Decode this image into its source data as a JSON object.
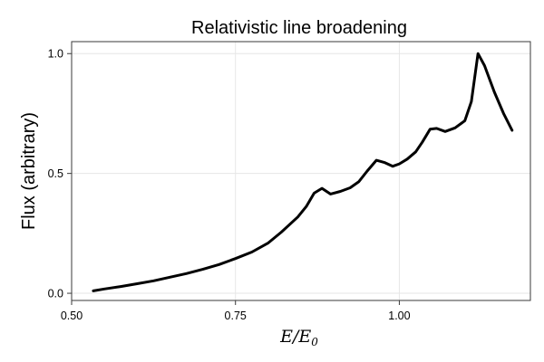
{
  "chart_data": {
    "type": "line",
    "title": "Relativistic line broadening",
    "xlabel": "E/E",
    "xlabel_sub": "0",
    "ylabel": "Flux (arbitrary)",
    "xlim": [
      0.5,
      1.2
    ],
    "ylim": [
      -0.03,
      1.05
    ],
    "xticks": [
      0.5,
      0.75,
      1.0
    ],
    "xtick_labels": [
      "0.50",
      "0.75",
      "1.00"
    ],
    "yticks": [
      0.0,
      0.5,
      1.0
    ],
    "ytick_labels": [
      "0.0",
      "0.5",
      "1.0"
    ],
    "grid": true,
    "series": [
      {
        "color": "#000000",
        "x": [
          0.533,
          0.55,
          0.575,
          0.6,
          0.625,
          0.65,
          0.675,
          0.7,
          0.725,
          0.75,
          0.775,
          0.8,
          0.82,
          0.845,
          0.858,
          0.87,
          0.882,
          0.895,
          0.91,
          0.925,
          0.938,
          0.951,
          0.965,
          0.978,
          0.99,
          1.0,
          1.012,
          1.025,
          1.035,
          1.047,
          1.057,
          1.07,
          1.085,
          1.1,
          1.11,
          1.12,
          1.13,
          1.145,
          1.159,
          1.172
        ],
        "y": [
          0.01,
          0.018,
          0.028,
          0.04,
          0.052,
          0.067,
          0.082,
          0.1,
          0.12,
          0.145,
          0.172,
          0.21,
          0.255,
          0.318,
          0.362,
          0.418,
          0.438,
          0.414,
          0.425,
          0.44,
          0.465,
          0.51,
          0.555,
          0.545,
          0.53,
          0.54,
          0.56,
          0.59,
          0.63,
          0.685,
          0.688,
          0.675,
          0.69,
          0.72,
          0.8,
          1.0,
          0.95,
          0.84,
          0.75,
          0.68
        ]
      }
    ]
  }
}
